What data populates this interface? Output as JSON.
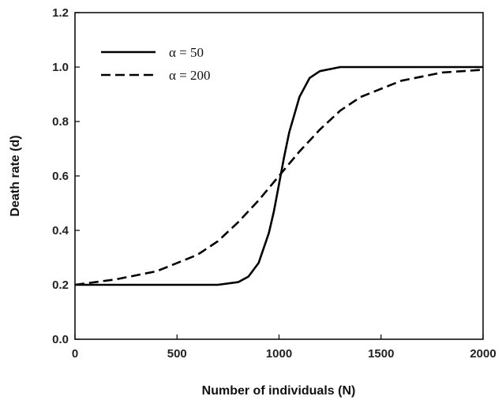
{
  "chart_data": {
    "type": "line",
    "title": "",
    "xlabel": "Number of individuals (N)",
    "ylabel": "Death rate (d)",
    "xlim": [
      0,
      2000
    ],
    "ylim": [
      0.0,
      1.2
    ],
    "xticks": [
      "0",
      "500",
      "1000",
      "1500",
      "2000"
    ],
    "yticks": [
      "0.0",
      "0.2",
      "0.4",
      "0.6",
      "0.8",
      "1.0",
      "1.2"
    ],
    "grid": false,
    "legend_position": "top-left",
    "series": [
      {
        "name": "α = 50",
        "style": "solid",
        "color": "#000000",
        "x": [
          0,
          500,
          700,
          800,
          850,
          900,
          950,
          975,
          1000,
          1025,
          1050,
          1100,
          1150,
          1200,
          1300,
          1500,
          2000
        ],
        "y": [
          0.2,
          0.2,
          0.2,
          0.21,
          0.23,
          0.28,
          0.39,
          0.47,
          0.57,
          0.67,
          0.76,
          0.89,
          0.96,
          0.985,
          1.0,
          1.0,
          1.0
        ]
      },
      {
        "name": "α = 200",
        "style": "dashed",
        "color": "#000000",
        "x": [
          0,
          200,
          400,
          600,
          700,
          800,
          900,
          1000,
          1100,
          1200,
          1300,
          1400,
          1600,
          1800,
          2000
        ],
        "y": [
          0.2,
          0.22,
          0.25,
          0.31,
          0.36,
          0.43,
          0.51,
          0.6,
          0.69,
          0.77,
          0.84,
          0.89,
          0.95,
          0.98,
          0.99
        ]
      }
    ]
  }
}
